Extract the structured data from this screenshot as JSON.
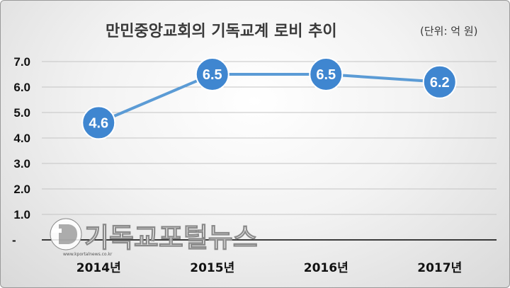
{
  "chart_data": {
    "type": "line",
    "title": "만민중앙교회의 기독교계 로비 추이",
    "unit_note": "(단위: 억 원)",
    "categories": [
      "2014년",
      "2015년",
      "2016년",
      "2017년"
    ],
    "series": [
      {
        "values": [
          4.6,
          6.5,
          6.5,
          6.2
        ],
        "data_labels": [
          "4.6",
          "6.5",
          "6.5",
          "6.2"
        ]
      }
    ],
    "y_ticks": [
      "-",
      "1.0",
      "2.0",
      "3.0",
      "4.0",
      "5.0",
      "6.0",
      "7.0"
    ],
    "ylim": [
      0,
      7
    ],
    "grid": true,
    "colors": {
      "line": "#5b9bd5",
      "marker": "#3f86d0",
      "marker_edge": "#ffffff"
    }
  },
  "watermark": {
    "text": "기독교포털뉴스",
    "sub": "www.kportalnews.co.kr"
  }
}
